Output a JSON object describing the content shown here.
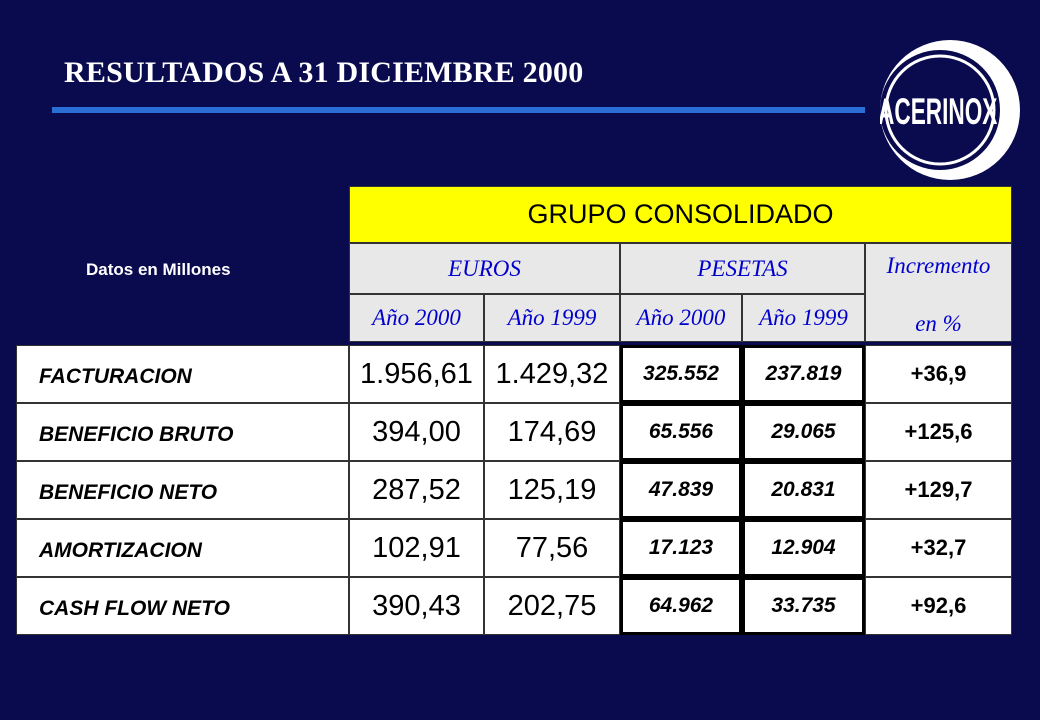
{
  "title": "RESULTADOS A 31 DICIEMBRE 2000",
  "logo_text": "ACERINOX",
  "units_note": "Datos en Millones",
  "table": {
    "group_header": "GRUPO CONSOLIDADO",
    "currency_headers": [
      "EUROS",
      "PESETAS"
    ],
    "increment_header": [
      "Incremento",
      "en %"
    ],
    "year_headers": [
      "Año 2000",
      "Año 1999",
      "Año 2000",
      "Año 1999"
    ],
    "rows": [
      {
        "label": "FACTURACION",
        "eur_2000": "1.956,61",
        "eur_1999": "1.429,32",
        "pts_2000": "325.552",
        "pts_1999": "237.819",
        "increment": "+36,9"
      },
      {
        "label": "BENEFICIO BRUTO",
        "eur_2000": "394,00",
        "eur_1999": "174,69",
        "pts_2000": "65.556",
        "pts_1999": "29.065",
        "increment": "+125,6"
      },
      {
        "label": "BENEFICIO NETO",
        "eur_2000": "287,52",
        "eur_1999": "125,19",
        "pts_2000": "47.839",
        "pts_1999": "20.831",
        "increment": "+129,7"
      },
      {
        "label": "AMORTIZACION",
        "eur_2000": "102,91",
        "eur_1999": "77,56",
        "pts_2000": "17.123",
        "pts_1999": "12.904",
        "increment": "+32,7"
      },
      {
        "label": "CASH FLOW NETO",
        "eur_2000": "390,43",
        "eur_1999": "202,75",
        "pts_2000": "64.962",
        "pts_1999": "33.735",
        "increment": "+92,6"
      }
    ]
  },
  "colors": {
    "background": "#0a0a4f",
    "title_rule": "#2a6fd6",
    "group_header_bg": "#ffff00",
    "subheader_bg": "#e8e8e8",
    "subheader_text": "#0000cc"
  }
}
